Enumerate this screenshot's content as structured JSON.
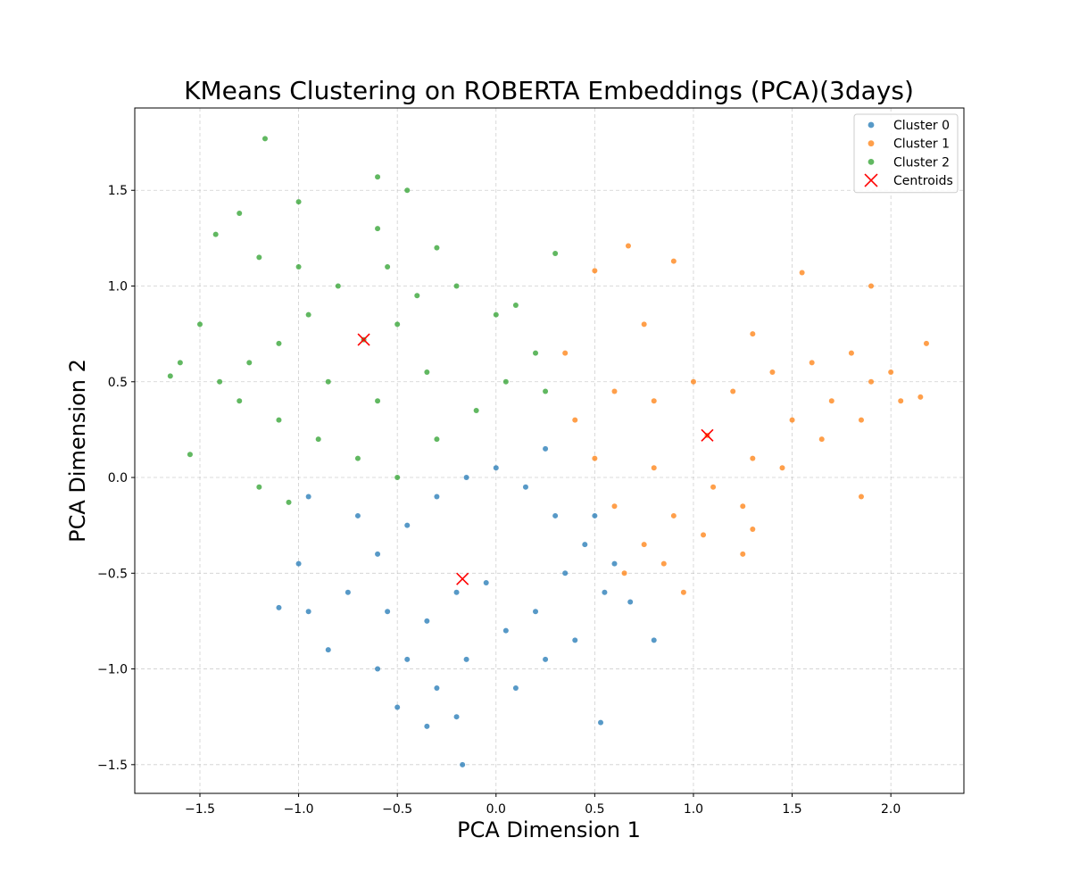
{
  "chart_data": {
    "type": "scatter",
    "title": "KMeans Clustering on ROBERTA Embeddings (PCA)(3days)",
    "xlabel": "PCA Dimension 1",
    "ylabel": "PCA Dimension 2",
    "xlim": [
      -1.83,
      2.37
    ],
    "ylim": [
      -1.65,
      1.93
    ],
    "x_ticks": [
      -1.5,
      -1.0,
      -0.5,
      0.0,
      0.5,
      1.0,
      1.5,
      2.0
    ],
    "x_tick_labels": [
      "−1.5",
      "−1.0",
      "−0.5",
      "0.0",
      "0.5",
      "1.0",
      "1.5",
      "2.0"
    ],
    "y_ticks": [
      -1.5,
      -1.0,
      -0.5,
      0.0,
      0.5,
      1.0,
      1.5
    ],
    "y_tick_labels": [
      "−1.5",
      "−1.0",
      "−0.5",
      "0.0",
      "0.5",
      "1.0",
      "1.5"
    ],
    "grid": true,
    "legend_position": "top-right",
    "series": [
      {
        "name": "Cluster 0",
        "color": "#1f77b4",
        "points": [
          [
            -0.05,
            -0.55
          ],
          [
            -0.2,
            -0.6
          ],
          [
            -0.35,
            -0.75
          ],
          [
            -0.45,
            -0.95
          ],
          [
            -0.3,
            -1.1
          ],
          [
            -0.15,
            -0.95
          ],
          [
            0.05,
            -0.8
          ],
          [
            0.2,
            -0.7
          ],
          [
            0.35,
            -0.5
          ],
          [
            0.45,
            -0.35
          ],
          [
            0.3,
            -0.2
          ],
          [
            0.15,
            -0.05
          ],
          [
            0.0,
            0.05
          ],
          [
            -0.15,
            0.0
          ],
          [
            -0.3,
            -0.1
          ],
          [
            -0.45,
            -0.25
          ],
          [
            -0.6,
            -0.4
          ],
          [
            -0.55,
            -0.7
          ],
          [
            -0.6,
            -1.0
          ],
          [
            -0.5,
            -1.2
          ],
          [
            -0.35,
            -1.3
          ],
          [
            -0.2,
            -1.25
          ],
          [
            0.1,
            -1.1
          ],
          [
            0.25,
            -0.95
          ],
          [
            0.4,
            -0.85
          ],
          [
            0.55,
            -0.6
          ],
          [
            0.6,
            -0.45
          ],
          [
            0.5,
            -0.2
          ],
          [
            0.25,
            0.15
          ],
          [
            -0.7,
            -0.2
          ],
          [
            -0.75,
            -0.6
          ],
          [
            -0.85,
            -0.9
          ],
          [
            -0.95,
            -0.7
          ],
          [
            -1.0,
            -0.45
          ],
          [
            -1.1,
            -0.68
          ],
          [
            -0.95,
            -0.1
          ],
          [
            -0.17,
            -1.5
          ],
          [
            0.53,
            -1.28
          ],
          [
            0.8,
            -0.85
          ],
          [
            0.68,
            -0.65
          ]
        ]
      },
      {
        "name": "Cluster 1",
        "color": "#ff7f0e",
        "points": [
          [
            1.07,
            0.22
          ],
          [
            0.8,
            0.05
          ],
          [
            0.6,
            -0.15
          ],
          [
            0.5,
            0.1
          ],
          [
            0.4,
            0.3
          ],
          [
            0.6,
            0.45
          ],
          [
            0.8,
            0.4
          ],
          [
            1.0,
            0.5
          ],
          [
            1.2,
            0.45
          ],
          [
            1.4,
            0.55
          ],
          [
            1.6,
            0.6
          ],
          [
            1.8,
            0.65
          ],
          [
            1.9,
            0.5
          ],
          [
            1.7,
            0.4
          ],
          [
            1.5,
            0.3
          ],
          [
            1.3,
            0.1
          ],
          [
            1.1,
            -0.05
          ],
          [
            0.9,
            -0.2
          ],
          [
            0.75,
            -0.35
          ],
          [
            0.65,
            -0.5
          ],
          [
            0.85,
            -0.45
          ],
          [
            1.05,
            -0.3
          ],
          [
            1.25,
            -0.15
          ],
          [
            1.45,
            0.05
          ],
          [
            1.65,
            0.2
          ],
          [
            1.85,
            0.3
          ],
          [
            2.0,
            0.55
          ],
          [
            2.05,
            0.4
          ],
          [
            2.18,
            0.7
          ],
          [
            2.15,
            0.42
          ],
          [
            1.85,
            -0.1
          ],
          [
            0.67,
            1.21
          ],
          [
            0.5,
            1.08
          ],
          [
            0.9,
            1.13
          ],
          [
            1.55,
            1.07
          ],
          [
            1.9,
            1.0
          ],
          [
            0.95,
            -0.6
          ],
          [
            1.3,
            -0.27
          ],
          [
            1.25,
            -0.4
          ],
          [
            0.35,
            0.65
          ],
          [
            0.75,
            0.8
          ],
          [
            1.3,
            0.75
          ]
        ]
      },
      {
        "name": "Cluster 2",
        "color": "#2ca02c",
        "points": [
          [
            -0.67,
            0.72
          ],
          [
            -0.5,
            0.8
          ],
          [
            -0.4,
            0.95
          ],
          [
            -0.55,
            1.1
          ],
          [
            -0.3,
            1.2
          ],
          [
            -0.6,
            1.3
          ],
          [
            -0.8,
            1.0
          ],
          [
            -0.95,
            0.85
          ],
          [
            -1.1,
            0.7
          ],
          [
            -1.25,
            0.6
          ],
          [
            -1.4,
            0.5
          ],
          [
            -1.3,
            0.4
          ],
          [
            -1.1,
            0.3
          ],
          [
            -0.9,
            0.2
          ],
          [
            -0.7,
            0.1
          ],
          [
            -0.5,
            0.0
          ],
          [
            -0.3,
            0.2
          ],
          [
            -0.1,
            0.35
          ],
          [
            0.05,
            0.5
          ],
          [
            0.2,
            0.65
          ],
          [
            0.0,
            0.85
          ],
          [
            -0.2,
            1.0
          ],
          [
            -0.35,
            0.55
          ],
          [
            -0.6,
            0.4
          ],
          [
            -0.85,
            0.5
          ],
          [
            -1.0,
            1.1
          ],
          [
            -1.2,
            1.15
          ],
          [
            -1.5,
            0.8
          ],
          [
            -1.6,
            0.6
          ],
          [
            -1.65,
            0.53
          ],
          [
            -1.55,
            0.12
          ],
          [
            -1.2,
            -0.05
          ],
          [
            -1.05,
            -0.13
          ],
          [
            -1.17,
            1.77
          ],
          [
            -1.0,
            1.44
          ],
          [
            -1.3,
            1.38
          ],
          [
            -1.42,
            1.27
          ],
          [
            -0.6,
            1.57
          ],
          [
            -0.45,
            1.5
          ],
          [
            0.3,
            1.17
          ],
          [
            0.1,
            0.9
          ],
          [
            0.25,
            0.45
          ]
        ]
      }
    ],
    "centroids": {
      "name": "Centroids",
      "color": "#ff0000",
      "points": [
        [
          -0.67,
          0.72
        ],
        [
          1.07,
          0.22
        ],
        [
          -0.17,
          -0.53
        ]
      ]
    }
  }
}
